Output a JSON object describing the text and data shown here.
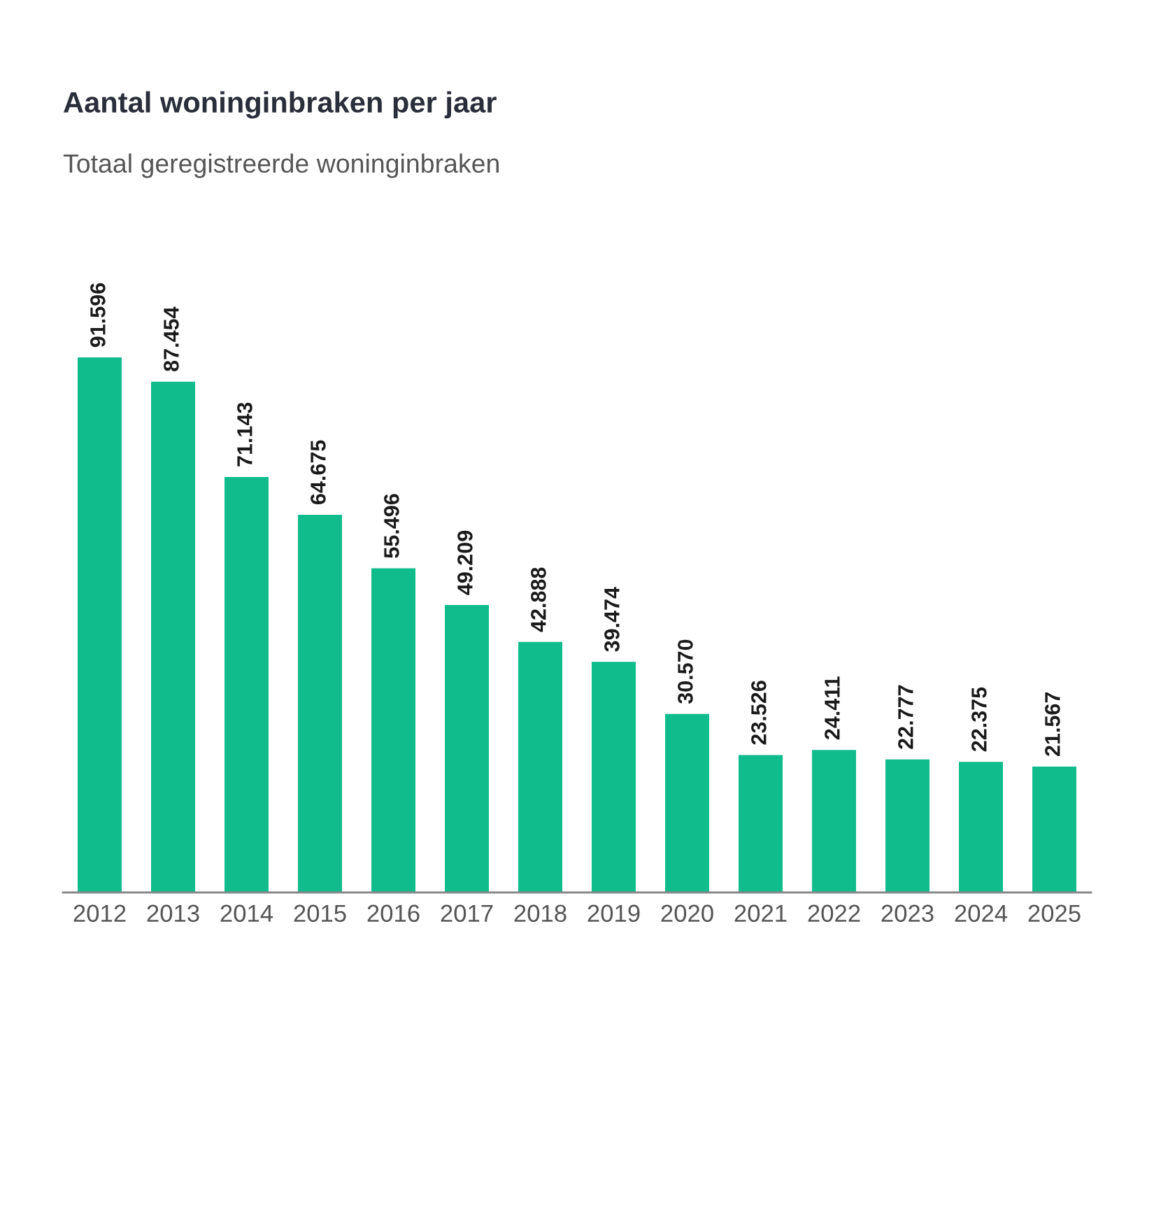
{
  "chart_data": {
    "type": "bar",
    "title": "Aantal woninginbraken per jaar",
    "subtitle": "Totaal geregistreerde woninginbraken",
    "categories": [
      "2012",
      "2013",
      "2014",
      "2015",
      "2016",
      "2017",
      "2018",
      "2019",
      "2020",
      "2021",
      "2022",
      "2023",
      "2024",
      "2025"
    ],
    "values": [
      91596,
      87454,
      71143,
      64675,
      55496,
      49209,
      42888,
      39474,
      30570,
      23526,
      24411,
      22777,
      22375,
      21567
    ],
    "value_labels": [
      "91.596",
      "87.454",
      "71.143",
      "64.675",
      "55.496",
      "49.209",
      "42.888",
      "39.474",
      "30.570",
      "23.526",
      "24.411",
      "22.777",
      "22.375",
      "21.567"
    ],
    "color": "#10bc8c",
    "grid": false,
    "legend": false
  }
}
